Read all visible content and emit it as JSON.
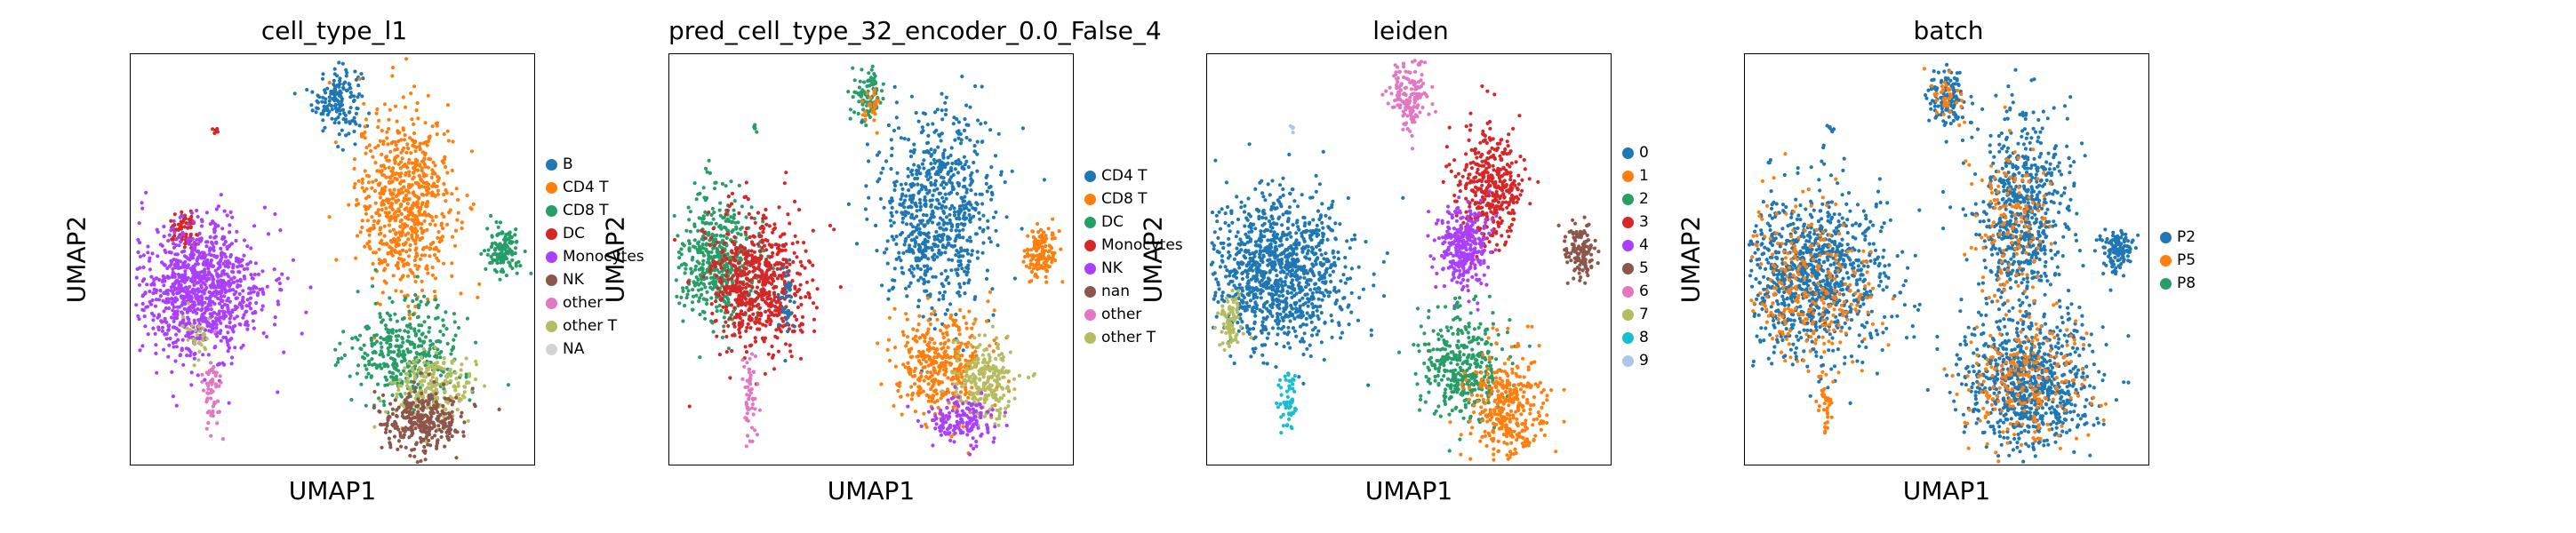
{
  "chart_data": [
    {
      "type": "scatter",
      "title": "cell_type_l1",
      "xlabel": "UMAP1",
      "ylabel": "UMAP2",
      "legend": "right-outside",
      "grid": false,
      "legend_entries": [
        {
          "name": "B",
          "color": "#1f77b4"
        },
        {
          "name": "CD4 T",
          "color": "#ff7f0e"
        },
        {
          "name": "CD8 T",
          "color": "#279e68"
        },
        {
          "name": "DC",
          "color": "#d62728"
        },
        {
          "name": "Monocytes",
          "color": "#aa40fc"
        },
        {
          "name": "NK",
          "color": "#8c564b"
        },
        {
          "name": "other",
          "color": "#e377c2"
        },
        {
          "name": "other T",
          "color": "#b5bd61"
        },
        {
          "name": "NA",
          "color": "#d3d3d3"
        }
      ],
      "clusters": [
        {
          "label": "B",
          "color": "#1f77b4",
          "center": [
            0.51,
            0.89
          ],
          "spread": [
            0.03,
            0.04
          ],
          "n": 160
        },
        {
          "label": "CD4 T",
          "color": "#ff7f0e",
          "center": [
            0.68,
            0.64
          ],
          "spread": [
            0.06,
            0.11
          ],
          "n": 700
        },
        {
          "label": "CD8 T",
          "color": "#279e68",
          "center": [
            0.92,
            0.52
          ],
          "spread": [
            0.02,
            0.03
          ],
          "n": 130
        },
        {
          "label": "CD8 T",
          "color": "#279e68",
          "center": [
            0.68,
            0.28
          ],
          "spread": [
            0.07,
            0.06
          ],
          "n": 380
        },
        {
          "label": "other T",
          "color": "#b5bd61",
          "center": [
            0.75,
            0.19
          ],
          "spread": [
            0.05,
            0.04
          ],
          "n": 220
        },
        {
          "label": "NK",
          "color": "#8c564b",
          "center": [
            0.72,
            0.11
          ],
          "spread": [
            0.05,
            0.04
          ],
          "n": 320
        },
        {
          "label": "DC",
          "color": "#d62728",
          "center": [
            0.13,
            0.57
          ],
          "spread": [
            0.02,
            0.02
          ],
          "n": 70
        },
        {
          "label": "DC",
          "color": "#d62728",
          "center": [
            0.21,
            0.82
          ],
          "spread": [
            0.004,
            0.006
          ],
          "n": 6
        },
        {
          "label": "Monocytes",
          "color": "#aa40fc",
          "center": [
            0.17,
            0.43
          ],
          "spread": [
            0.08,
            0.08
          ],
          "n": 1000
        },
        {
          "label": "other",
          "color": "#e377c2",
          "center": [
            0.2,
            0.18
          ],
          "spread": [
            0.01,
            0.05
          ],
          "n": 60
        },
        {
          "label": "other T",
          "color": "#b5bd61",
          "center": [
            0.17,
            0.32
          ],
          "spread": [
            0.02,
            0.03
          ],
          "n": 30
        }
      ]
    },
    {
      "type": "scatter",
      "title": "pred_cell_type_32_encoder_0.0_False_4",
      "xlabel": "UMAP1",
      "ylabel": "UMAP2",
      "legend": "right-outside",
      "grid": false,
      "legend_entries": [
        {
          "name": "CD4 T",
          "color": "#1f77b4"
        },
        {
          "name": "CD8 T",
          "color": "#ff7f0e"
        },
        {
          "name": "DC",
          "color": "#279e68"
        },
        {
          "name": "Monocytes",
          "color": "#d62728"
        },
        {
          "name": "NK",
          "color": "#aa40fc"
        },
        {
          "name": "nan",
          "color": "#8c564b"
        },
        {
          "name": "other",
          "color": "#e377c2"
        },
        {
          "name": "other T",
          "color": "#b5bd61"
        }
      ],
      "clusters": [
        {
          "label": "DC",
          "color": "#279e68",
          "center": [
            0.49,
            0.9
          ],
          "spread": [
            0.02,
            0.03
          ],
          "n": 90
        },
        {
          "label": "CD8 T",
          "color": "#ff7f0e",
          "center": [
            0.5,
            0.88
          ],
          "spread": [
            0.01,
            0.02
          ],
          "n": 30
        },
        {
          "label": "CD4 T",
          "color": "#1f77b4",
          "center": [
            0.66,
            0.62
          ],
          "spread": [
            0.07,
            0.12
          ],
          "n": 750
        },
        {
          "label": "CD8 T",
          "color": "#ff7f0e",
          "center": [
            0.92,
            0.52
          ],
          "spread": [
            0.02,
            0.03
          ],
          "n": 130
        },
        {
          "label": "CD8 T",
          "color": "#ff7f0e",
          "center": [
            0.67,
            0.24
          ],
          "spread": [
            0.06,
            0.07
          ],
          "n": 400
        },
        {
          "label": "other T",
          "color": "#b5bd61",
          "center": [
            0.78,
            0.21
          ],
          "spread": [
            0.04,
            0.05
          ],
          "n": 250
        },
        {
          "label": "NK",
          "color": "#aa40fc",
          "center": [
            0.72,
            0.11
          ],
          "spread": [
            0.04,
            0.03
          ],
          "n": 160
        },
        {
          "label": "DC",
          "color": "#279e68",
          "center": [
            0.12,
            0.5
          ],
          "spread": [
            0.05,
            0.08
          ],
          "n": 500
        },
        {
          "label": "Monocytes",
          "color": "#d62728",
          "center": [
            0.22,
            0.44
          ],
          "spread": [
            0.06,
            0.08
          ],
          "n": 650
        },
        {
          "label": "CD4 T",
          "color": "#1f77b4",
          "center": [
            0.29,
            0.4
          ],
          "spread": [
            0.01,
            0.04
          ],
          "n": 40
        },
        {
          "label": "other",
          "color": "#e377c2",
          "center": [
            0.2,
            0.17
          ],
          "spread": [
            0.01,
            0.05
          ],
          "n": 60
        },
        {
          "label": "DC",
          "color": "#279e68",
          "center": [
            0.21,
            0.82
          ],
          "spread": [
            0.004,
            0.006
          ],
          "n": 6
        }
      ]
    },
    {
      "type": "scatter",
      "title": "leiden",
      "xlabel": "UMAP1",
      "ylabel": "UMAP2",
      "legend": "right-outside",
      "grid": false,
      "legend_entries": [
        {
          "name": "0",
          "color": "#1f77b4"
        },
        {
          "name": "1",
          "color": "#ff7f0e"
        },
        {
          "name": "2",
          "color": "#279e68"
        },
        {
          "name": "3",
          "color": "#d62728"
        },
        {
          "name": "4",
          "color": "#aa40fc"
        },
        {
          "name": "5",
          "color": "#8c564b"
        },
        {
          "name": "6",
          "color": "#e377c2"
        },
        {
          "name": "7",
          "color": "#b5bd61"
        },
        {
          "name": "8",
          "color": "#17becf"
        },
        {
          "name": "9",
          "color": "#aec7e8"
        }
      ],
      "clusters": [
        {
          "label": "6",
          "color": "#e377c2",
          "center": [
            0.5,
            0.9
          ],
          "spread": [
            0.025,
            0.04
          ],
          "n": 160
        },
        {
          "label": "3",
          "color": "#d62728",
          "center": [
            0.7,
            0.68
          ],
          "spread": [
            0.04,
            0.07
          ],
          "n": 380
        },
        {
          "label": "4",
          "color": "#aa40fc",
          "center": [
            0.63,
            0.53
          ],
          "spread": [
            0.03,
            0.05
          ],
          "n": 320
        },
        {
          "label": "5",
          "color": "#8c564b",
          "center": [
            0.92,
            0.52
          ],
          "spread": [
            0.02,
            0.03
          ],
          "n": 130
        },
        {
          "label": "2",
          "color": "#279e68",
          "center": [
            0.63,
            0.24
          ],
          "spread": [
            0.05,
            0.07
          ],
          "n": 380
        },
        {
          "label": "1",
          "color": "#ff7f0e",
          "center": [
            0.74,
            0.14
          ],
          "spread": [
            0.05,
            0.07
          ],
          "n": 360
        },
        {
          "label": "0",
          "color": "#1f77b4",
          "center": [
            0.17,
            0.48
          ],
          "spread": [
            0.09,
            0.09
          ],
          "n": 1100
        },
        {
          "label": "7",
          "color": "#b5bd61",
          "center": [
            0.06,
            0.35
          ],
          "spread": [
            0.015,
            0.03
          ],
          "n": 80
        },
        {
          "label": "8",
          "color": "#17becf",
          "center": [
            0.2,
            0.16
          ],
          "spread": [
            0.01,
            0.04
          ],
          "n": 60
        },
        {
          "label": "9",
          "color": "#aec7e8",
          "center": [
            0.21,
            0.82
          ],
          "spread": [
            0.004,
            0.006
          ],
          "n": 6
        }
      ]
    },
    {
      "type": "scatter",
      "title": "batch",
      "xlabel": "UMAP1",
      "ylabel": "UMAP2",
      "legend": "right-outside",
      "grid": false,
      "legend_entries": [
        {
          "name": "P2",
          "color": "#1f77b4"
        },
        {
          "name": "P5",
          "color": "#ff7f0e"
        },
        {
          "name": "P8",
          "color": "#279e68"
        }
      ],
      "clusters": [
        {
          "label": "P2",
          "color": "#1f77b4",
          "center": [
            0.5,
            0.89
          ],
          "spread": [
            0.025,
            0.04
          ],
          "n": 120
        },
        {
          "label": "P5",
          "color": "#ff7f0e",
          "center": [
            0.5,
            0.9
          ],
          "spread": [
            0.02,
            0.03
          ],
          "n": 40
        },
        {
          "label": "P2",
          "color": "#1f77b4",
          "center": [
            0.68,
            0.62
          ],
          "spread": [
            0.06,
            0.12
          ],
          "n": 650
        },
        {
          "label": "P5",
          "color": "#ff7f0e",
          "center": [
            0.66,
            0.6
          ],
          "spread": [
            0.05,
            0.1
          ],
          "n": 150
        },
        {
          "label": "P2",
          "color": "#1f77b4",
          "center": [
            0.92,
            0.52
          ],
          "spread": [
            0.02,
            0.03
          ],
          "n": 130
        },
        {
          "label": "P2",
          "color": "#1f77b4",
          "center": [
            0.7,
            0.2
          ],
          "spread": [
            0.08,
            0.08
          ],
          "n": 800
        },
        {
          "label": "P5",
          "color": "#ff7f0e",
          "center": [
            0.7,
            0.2
          ],
          "spread": [
            0.08,
            0.08
          ],
          "n": 250
        },
        {
          "label": "P2",
          "color": "#1f77b4",
          "center": [
            0.17,
            0.46
          ],
          "spread": [
            0.09,
            0.1
          ],
          "n": 1000
        },
        {
          "label": "P5",
          "color": "#ff7f0e",
          "center": [
            0.15,
            0.44
          ],
          "spread": [
            0.09,
            0.1
          ],
          "n": 300
        },
        {
          "label": "P5",
          "color": "#ff7f0e",
          "center": [
            0.2,
            0.17
          ],
          "spread": [
            0.01,
            0.05
          ],
          "n": 40
        },
        {
          "label": "P2",
          "color": "#1f77b4",
          "center": [
            0.21,
            0.82
          ],
          "spread": [
            0.004,
            0.006
          ],
          "n": 6
        }
      ]
    }
  ]
}
